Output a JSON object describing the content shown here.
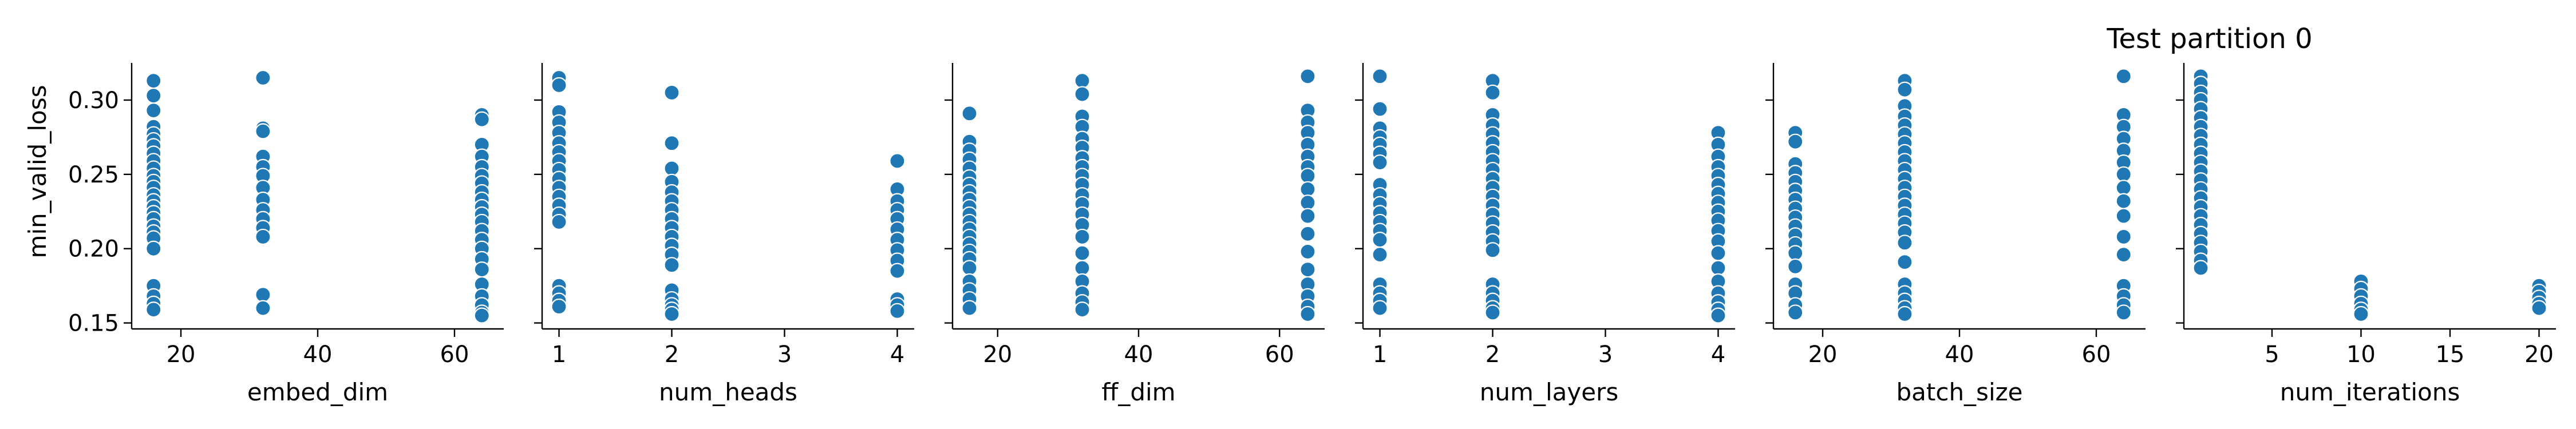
{
  "figure": {
    "title": "Test partition 0",
    "ylabel": "min_valid_loss",
    "point_color": "#1f77b4"
  },
  "chart_data": [
    {
      "type": "scatter",
      "xlabel": "embed_dim",
      "ylabel": "min_valid_loss",
      "xlim": [
        12.8,
        67.2
      ],
      "ylim": [
        0.146,
        0.325
      ],
      "xticks": [
        20,
        40,
        60
      ],
      "yticks": [
        0.15,
        0.2,
        0.25,
        0.3
      ],
      "x_values": [
        16,
        32,
        64
      ],
      "y_values": [
        [
          0.313,
          0.303,
          0.293,
          0.282,
          0.277,
          0.273,
          0.269,
          0.264,
          0.259,
          0.254,
          0.249,
          0.245,
          0.241,
          0.236,
          0.232,
          0.228,
          0.224,
          0.22,
          0.215,
          0.211,
          0.207,
          0.2,
          0.175,
          0.168,
          0.163,
          0.159
        ],
        [
          0.315,
          0.281,
          0.279,
          0.262,
          0.255,
          0.249,
          0.241,
          0.233,
          0.226,
          0.22,
          0.214,
          0.208,
          0.169,
          0.16
        ],
        [
          0.29,
          0.287,
          0.27,
          0.262,
          0.255,
          0.249,
          0.244,
          0.238,
          0.233,
          0.228,
          0.223,
          0.218,
          0.212,
          0.206,
          0.2,
          0.193,
          0.186,
          0.176,
          0.168,
          0.162,
          0.157,
          0.155
        ]
      ]
    },
    {
      "type": "scatter",
      "xlabel": "num_heads",
      "ylabel": "min_valid_loss",
      "xlim": [
        0.85,
        4.15
      ],
      "ylim": [
        0.146,
        0.325
      ],
      "xticks": [
        1,
        2,
        3,
        4
      ],
      "yticks": [
        0.15,
        0.2,
        0.25,
        0.3
      ],
      "x_values": [
        1,
        2,
        4
      ],
      "y_values": [
        [
          0.315,
          0.31,
          0.292,
          0.285,
          0.278,
          0.271,
          0.265,
          0.259,
          0.253,
          0.247,
          0.241,
          0.235,
          0.229,
          0.223,
          0.218,
          0.175,
          0.17,
          0.165,
          0.161
        ],
        [
          0.305,
          0.271,
          0.254,
          0.245,
          0.238,
          0.232,
          0.226,
          0.22,
          0.214,
          0.208,
          0.202,
          0.196,
          0.189,
          0.172,
          0.166,
          0.162,
          0.159,
          0.156
        ],
        [
          0.259,
          0.24,
          0.232,
          0.226,
          0.22,
          0.213,
          0.206,
          0.199,
          0.192,
          0.185,
          0.166,
          0.162,
          0.158
        ]
      ]
    },
    {
      "type": "scatter",
      "xlabel": "ff_dim",
      "ylabel": "min_valid_loss",
      "xlim": [
        13.6,
        66.4
      ],
      "ylim": [
        0.146,
        0.325
      ],
      "xticks": [
        20,
        40,
        60
      ],
      "yticks": [
        0.15,
        0.2,
        0.25,
        0.3
      ],
      "x_values": [
        16,
        32,
        64
      ],
      "y_values": [
        [
          0.291,
          0.272,
          0.266,
          0.26,
          0.254,
          0.248,
          0.243,
          0.238,
          0.233,
          0.228,
          0.223,
          0.218,
          0.213,
          0.208,
          0.203,
          0.198,
          0.193,
          0.187,
          0.178,
          0.172,
          0.166,
          0.16
        ],
        [
          0.313,
          0.304,
          0.289,
          0.282,
          0.274,
          0.268,
          0.261,
          0.255,
          0.249,
          0.243,
          0.236,
          0.23,
          0.223,
          0.216,
          0.208,
          0.197,
          0.187,
          0.178,
          0.17,
          0.164,
          0.159
        ],
        [
          0.316,
          0.293,
          0.285,
          0.278,
          0.27,
          0.262,
          0.255,
          0.249,
          0.24,
          0.231,
          0.222,
          0.21,
          0.198,
          0.186,
          0.176,
          0.168,
          0.161,
          0.156
        ]
      ]
    },
    {
      "type": "scatter",
      "xlabel": "num_layers",
      "ylabel": "min_valid_loss",
      "xlim": [
        0.85,
        4.15
      ],
      "ylim": [
        0.146,
        0.325
      ],
      "xticks": [
        1,
        2,
        3,
        4
      ],
      "yticks": [
        0.15,
        0.2,
        0.25,
        0.3
      ],
      "x_values": [
        1,
        2,
        4
      ],
      "y_values": [
        [
          0.316,
          0.294,
          0.281,
          0.275,
          0.27,
          0.264,
          0.258,
          0.243,
          0.236,
          0.23,
          0.224,
          0.218,
          0.212,
          0.206,
          0.196,
          0.176,
          0.17,
          0.165,
          0.16
        ],
        [
          0.313,
          0.305,
          0.29,
          0.283,
          0.277,
          0.271,
          0.265,
          0.259,
          0.253,
          0.247,
          0.241,
          0.235,
          0.229,
          0.223,
          0.217,
          0.211,
          0.205,
          0.199,
          0.176,
          0.17,
          0.165,
          0.16,
          0.157
        ],
        [
          0.278,
          0.27,
          0.262,
          0.255,
          0.249,
          0.243,
          0.237,
          0.231,
          0.225,
          0.219,
          0.212,
          0.205,
          0.197,
          0.187,
          0.178,
          0.17,
          0.164,
          0.159,
          0.155
        ]
      ]
    },
    {
      "type": "scatter",
      "xlabel": "batch_size",
      "ylabel": "min_valid_loss",
      "xlim": [
        12.8,
        67.2
      ],
      "ylim": [
        0.146,
        0.325
      ],
      "xticks": [
        20,
        40,
        60
      ],
      "yticks": [
        0.15,
        0.2,
        0.25,
        0.3
      ],
      "x_values": [
        16,
        32,
        64
      ],
      "y_values": [
        [
          0.278,
          0.272,
          0.257,
          0.251,
          0.245,
          0.239,
          0.233,
          0.227,
          0.221,
          0.215,
          0.209,
          0.203,
          0.197,
          0.188,
          0.176,
          0.17,
          0.162,
          0.157
        ],
        [
          0.313,
          0.307,
          0.296,
          0.289,
          0.283,
          0.277,
          0.271,
          0.265,
          0.259,
          0.253,
          0.247,
          0.241,
          0.235,
          0.229,
          0.223,
          0.217,
          0.211,
          0.204,
          0.191,
          0.176,
          0.17,
          0.165,
          0.16,
          0.156
        ],
        [
          0.316,
          0.29,
          0.282,
          0.274,
          0.266,
          0.258,
          0.25,
          0.241,
          0.232,
          0.222,
          0.208,
          0.196,
          0.175,
          0.168,
          0.162,
          0.157
        ]
      ]
    },
    {
      "type": "scatter",
      "xlabel": "num_iterations",
      "ylabel": "min_valid_loss",
      "xlim": [
        0.05,
        20.95
      ],
      "ylim": [
        0.146,
        0.325
      ],
      "xticks": [
        5,
        10,
        15,
        20
      ],
      "yticks": [
        0.15,
        0.2,
        0.25,
        0.3
      ],
      "x_values": [
        1,
        10,
        20
      ],
      "y_values": [
        [
          0.316,
          0.311,
          0.305,
          0.3,
          0.294,
          0.288,
          0.282,
          0.276,
          0.27,
          0.264,
          0.258,
          0.252,
          0.246,
          0.24,
          0.234,
          0.228,
          0.222,
          0.216,
          0.21,
          0.204,
          0.198,
          0.192,
          0.187
        ],
        [
          0.178,
          0.173,
          0.168,
          0.163,
          0.159,
          0.156
        ],
        [
          0.175,
          0.171,
          0.167,
          0.163,
          0.16
        ]
      ]
    }
  ]
}
